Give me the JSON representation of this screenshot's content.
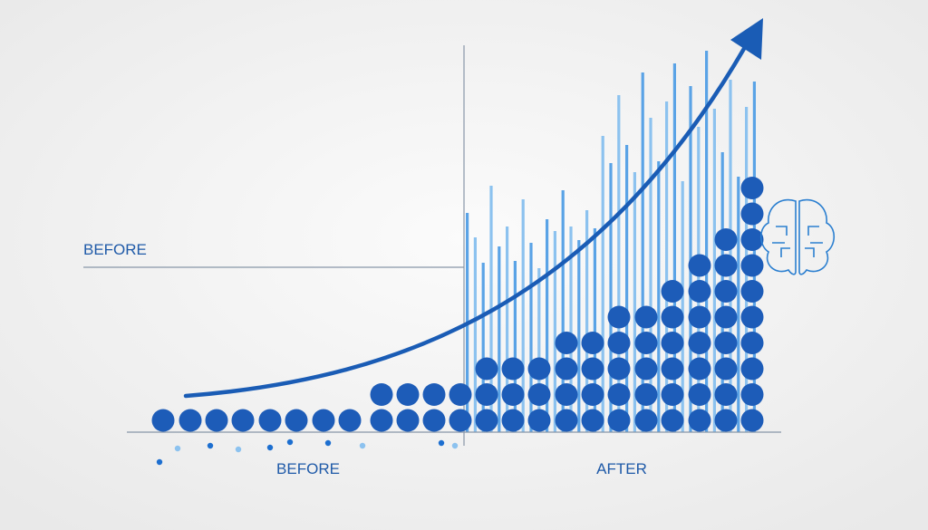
{
  "labels": {
    "before_top": "BEFORE",
    "before_bottom": "BEFORE",
    "after": "AFTER"
  }
}
